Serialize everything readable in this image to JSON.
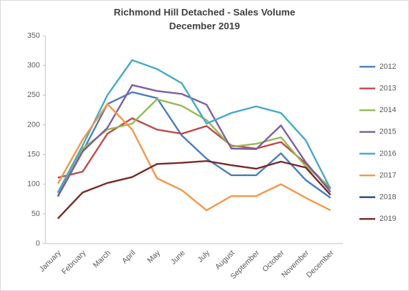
{
  "chart_data": {
    "type": "line",
    "title": "Richmond Hill Detached - Sales Volume",
    "subtitle": "December 2019",
    "categories": [
      "January",
      "February",
      "March",
      "April",
      "May",
      "June",
      "July",
      "August",
      "September",
      "October",
      "November",
      "December"
    ],
    "series": [
      {
        "name": "2012",
        "color": "#4a7ebb",
        "values": [
          79,
          155,
          235,
          255,
          245,
          182,
          143,
          115,
          115,
          152,
          107,
          77
        ]
      },
      {
        "name": "2013",
        "color": "#be4b48",
        "values": [
          111,
          121,
          185,
          211,
          192,
          185,
          198,
          165,
          160,
          171,
          135,
          92
        ]
      },
      {
        "name": "2014",
        "color": "#98b954",
        "values": [
          85,
          160,
          192,
          202,
          243,
          232,
          208,
          163,
          168,
          179,
          130,
          95
        ]
      },
      {
        "name": "2015",
        "color": "#7d60a0",
        "values": [
          80,
          155,
          195,
          267,
          257,
          252,
          234,
          160,
          159,
          199,
          137,
          87
        ]
      },
      {
        "name": "2016",
        "color": "#46aac5",
        "values": [
          86,
          165,
          250,
          309,
          294,
          270,
          202,
          220,
          231,
          220,
          174,
          92
        ]
      },
      {
        "name": "2017",
        "color": "#f79646",
        "values": [
          101,
          175,
          235,
          192,
          110,
          90,
          56,
          80,
          80,
          100,
          77,
          56
        ]
      },
      {
        "name": "2018",
        "color": "#2c4d75",
        "values": [
          null,
          null,
          null,
          null,
          null,
          null,
          null,
          null,
          null,
          null,
          null,
          null
        ]
      },
      {
        "name": "2019",
        "color": "#772c2a",
        "values": [
          42,
          86,
          102,
          112,
          134,
          136,
          139,
          132,
          126,
          138,
          128,
          82
        ]
      }
    ],
    "ylim": [
      0,
      350
    ],
    "yticks": [
      0,
      50,
      100,
      150,
      200,
      250,
      300,
      350
    ],
    "grid": false,
    "legend": "right"
  }
}
